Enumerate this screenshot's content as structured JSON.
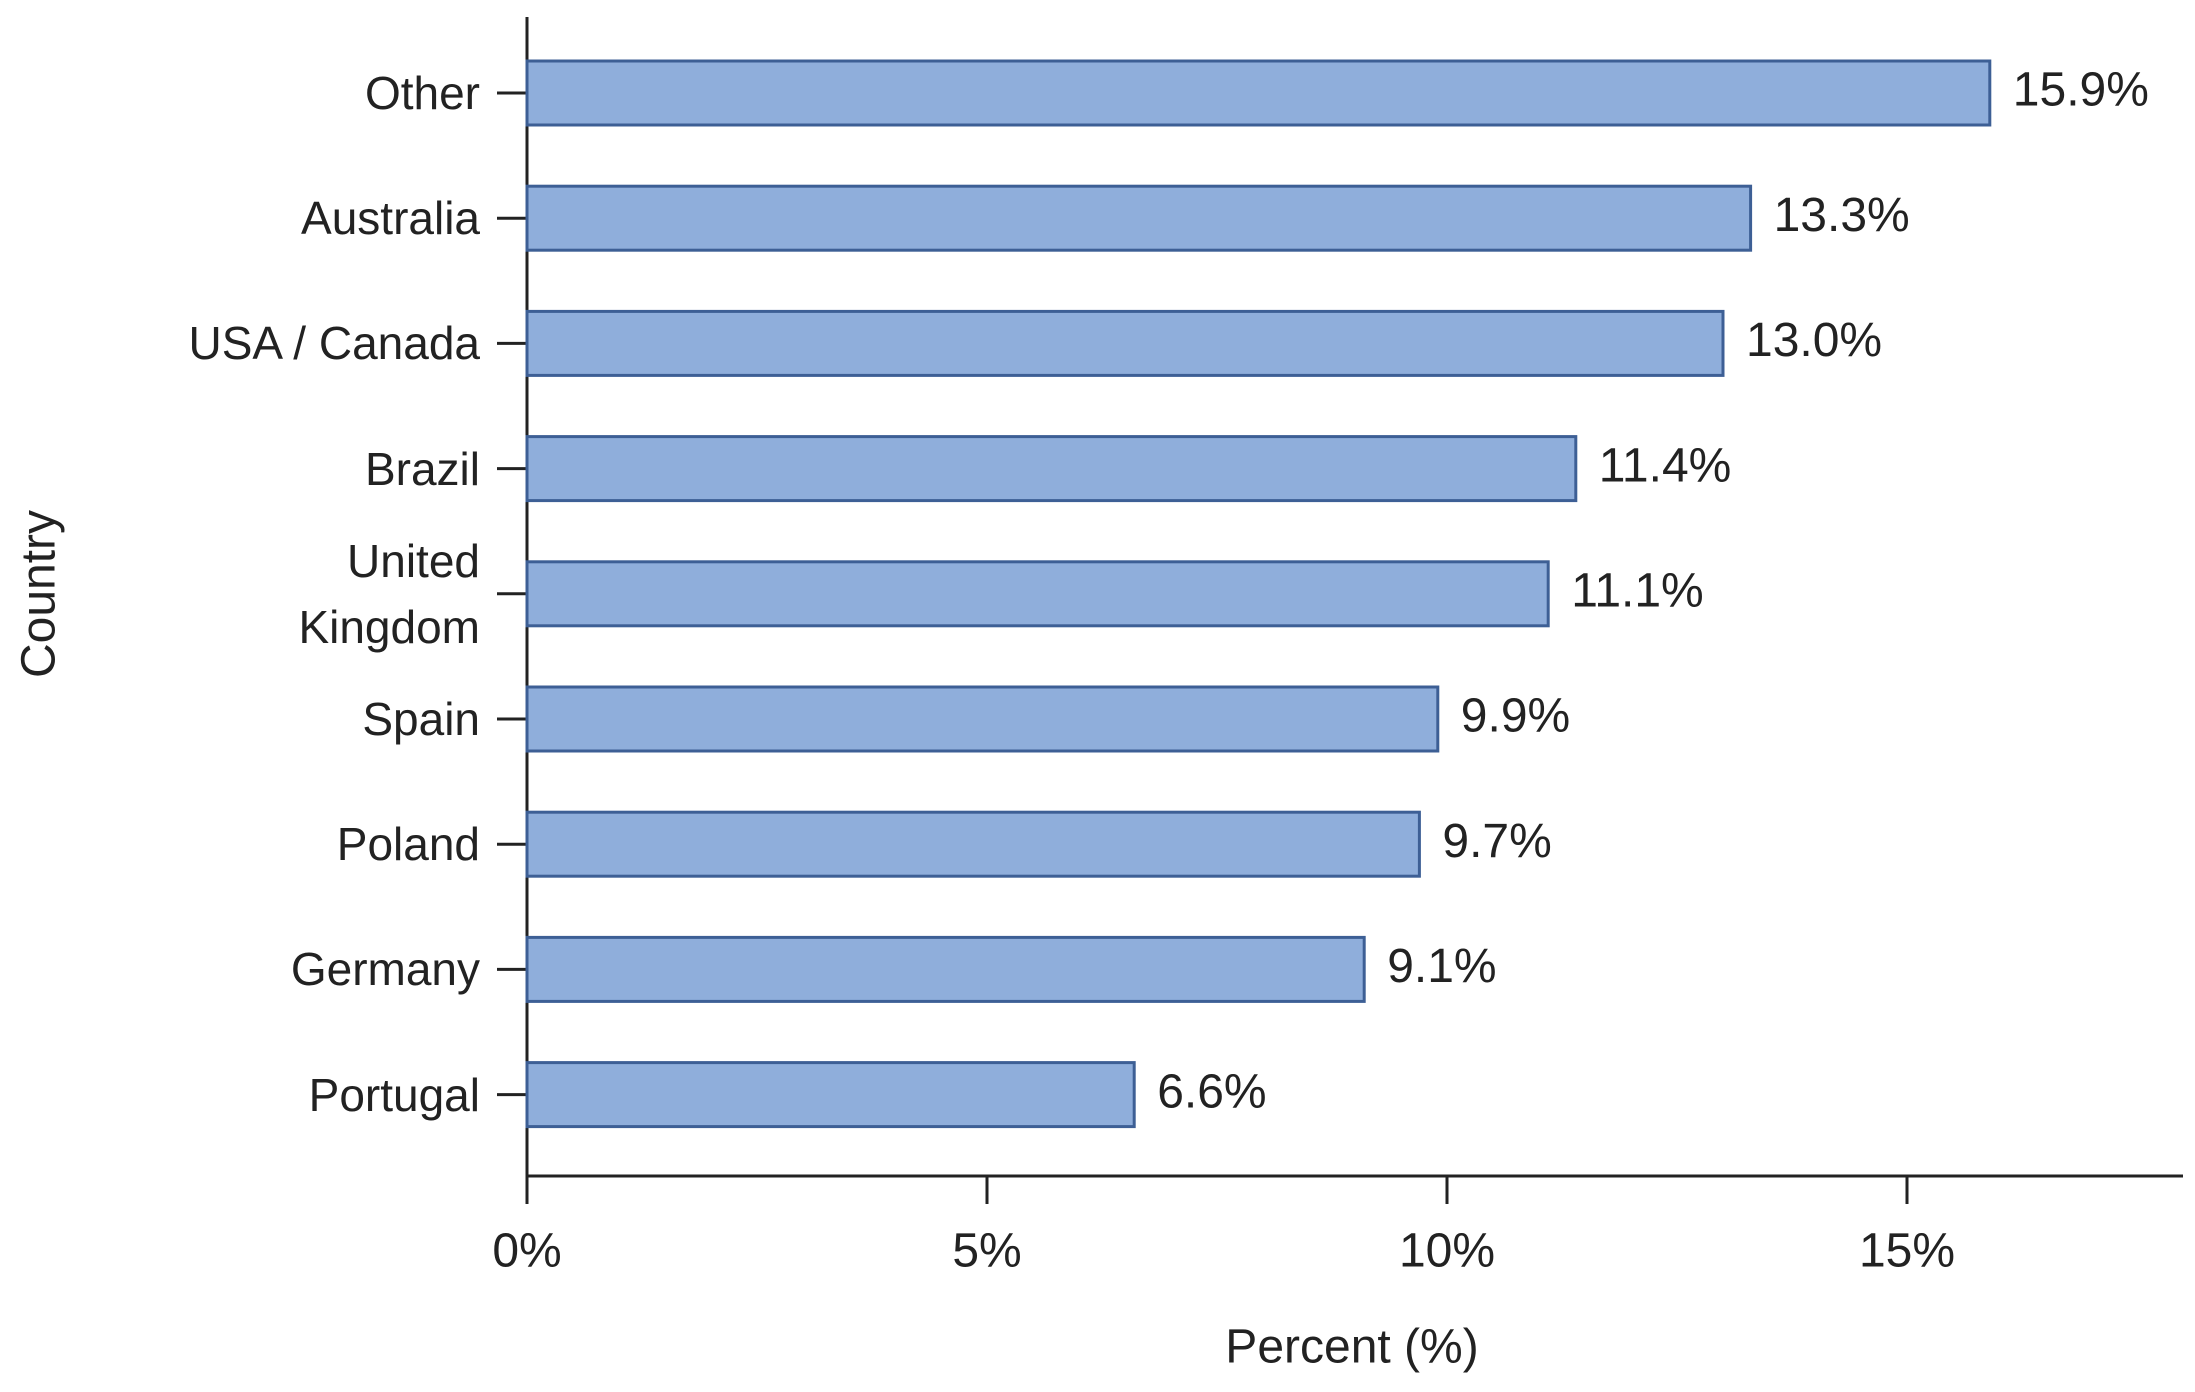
{
  "chart_data": {
    "type": "bar",
    "orientation": "horizontal",
    "x_label": "Percent (%)",
    "y_label": "Country",
    "categories": [
      "Other",
      "Australia",
      "USA / Canada",
      "Brazil",
      "United Kingdom",
      "Spain",
      "Poland",
      "Germany",
      "Portugal"
    ],
    "values": [
      15.9,
      13.3,
      13.0,
      11.4,
      11.1,
      9.9,
      9.7,
      9.1,
      6.6
    ],
    "value_labels": [
      "15.9%",
      "13.3%",
      "13.0%",
      "11.4%",
      "11.1%",
      "9.9%",
      "9.7%",
      "9.1%",
      "6.6%"
    ],
    "color": "#8faedb",
    "xlim": [
      0,
      18
    ],
    "xticks": [
      {
        "value": 0,
        "label": "0%"
      },
      {
        "value": 5,
        "label": "5%"
      },
      {
        "value": 10,
        "label": "10%"
      },
      {
        "value": 15,
        "label": "15%"
      }
    ],
    "grid": false
  }
}
